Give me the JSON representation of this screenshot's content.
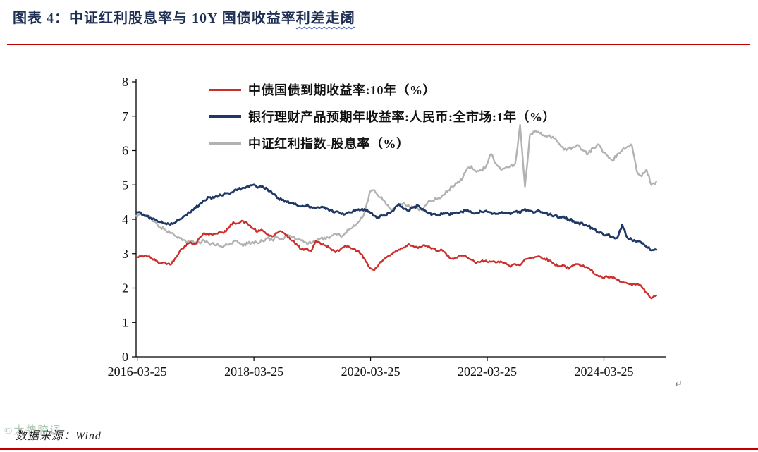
{
  "header": {
    "title_prefix": "图表 4：中证红利股息率与 10Y 国债收益率",
    "title_wavy": "利差走阔"
  },
  "footer": {
    "watermark": "©大牌腔调",
    "source": "数据来源：Wind"
  },
  "marks": {
    "return_mark": "↵"
  },
  "colors": {
    "accent_rule": "#c00000",
    "title_text": "#1e2f54"
  },
  "chart_data": {
    "type": "line",
    "title": "图表 4：中证红利股息率与 10Y 国债收益率利差走阔",
    "xlabel": "",
    "ylabel": "",
    "ylim": [
      0,
      8
    ],
    "y_ticks": [
      0,
      1,
      2,
      3,
      4,
      5,
      6,
      7,
      8
    ],
    "grid": false,
    "legend_position": "top-left-inside",
    "x_range": [
      2016.21,
      2025.3
    ],
    "x_start": 2016.21,
    "x_step": 0.0833333,
    "x_tick_values": [
      2016.23,
      2018.23,
      2020.23,
      2022.23,
      2024.23
    ],
    "x_tick_labels": [
      "2016-03-25",
      "2018-03-25",
      "2020-03-25",
      "2022-03-25",
      "2024-03-25"
    ],
    "source": "Wind",
    "series": [
      {
        "name": "中债国债到期收益率:10年（%）",
        "color": "#cb2f2b",
        "values": [
          2.88,
          2.92,
          2.95,
          2.88,
          2.8,
          2.72,
          2.74,
          2.68,
          2.86,
          3.08,
          3.22,
          3.32,
          3.28,
          3.45,
          3.6,
          3.55,
          3.58,
          3.62,
          3.6,
          3.74,
          3.92,
          3.88,
          3.95,
          3.86,
          3.74,
          3.64,
          3.68,
          3.56,
          3.5,
          3.6,
          3.64,
          3.54,
          3.38,
          3.28,
          3.12,
          3.14,
          3.08,
          3.38,
          3.28,
          3.24,
          3.16,
          3.04,
          3.12,
          3.24,
          3.18,
          3.14,
          3.02,
          2.86,
          2.6,
          2.52,
          2.7,
          2.84,
          2.94,
          3.04,
          3.12,
          3.18,
          3.28,
          3.22,
          3.16,
          3.24,
          3.2,
          3.16,
          3.08,
          3.1,
          2.94,
          2.86,
          2.88,
          2.94,
          2.9,
          2.82,
          2.72,
          2.78,
          2.8,
          2.76,
          2.74,
          2.78,
          2.74,
          2.62,
          2.7,
          2.66,
          2.84,
          2.88,
          2.9,
          2.92,
          2.86,
          2.8,
          2.7,
          2.64,
          2.66,
          2.56,
          2.66,
          2.7,
          2.66,
          2.58,
          2.46,
          2.36,
          2.3,
          2.32,
          2.3,
          2.24,
          2.16,
          2.14,
          2.08,
          2.12,
          2.04,
          1.86,
          1.7,
          1.78
        ]
      },
      {
        "name": "银行理财产品预期年收益率:人民币:全市场:1年（%）",
        "color": "#1f3864",
        "values": [
          4.22,
          4.18,
          4.1,
          4.04,
          3.98,
          3.92,
          3.88,
          3.84,
          3.9,
          4.0,
          4.1,
          4.2,
          4.32,
          4.42,
          4.55,
          4.64,
          4.62,
          4.68,
          4.72,
          4.76,
          4.8,
          4.88,
          4.92,
          4.96,
          5.0,
          4.92,
          4.96,
          4.88,
          4.76,
          4.62,
          4.56,
          4.5,
          4.46,
          4.42,
          4.38,
          4.4,
          4.36,
          4.32,
          4.35,
          4.3,
          4.28,
          4.22,
          4.18,
          4.15,
          4.2,
          4.24,
          4.26,
          4.3,
          4.22,
          4.1,
          4.05,
          4.12,
          4.18,
          4.26,
          4.44,
          4.3,
          4.25,
          4.35,
          4.4,
          4.3,
          4.2,
          4.15,
          4.12,
          4.15,
          4.18,
          4.15,
          4.2,
          4.22,
          4.25,
          4.2,
          4.18,
          4.22,
          4.25,
          4.2,
          4.15,
          4.18,
          4.2,
          4.15,
          4.22,
          4.18,
          4.3,
          4.25,
          4.2,
          4.24,
          4.18,
          4.14,
          4.1,
          4.05,
          4.08,
          4.0,
          3.95,
          3.9,
          3.85,
          3.8,
          3.72,
          3.62,
          3.58,
          3.55,
          3.5,
          3.46,
          3.85,
          3.48,
          3.4,
          3.35,
          3.3,
          3.2,
          3.1,
          3.12
        ]
      },
      {
        "name": "中证红利指数-股息率（%）",
        "color": "#b2b2b2",
        "values": [
          4.1,
          4.15,
          4.12,
          4.05,
          3.92,
          3.76,
          3.7,
          3.6,
          3.52,
          3.45,
          3.4,
          3.35,
          3.3,
          3.32,
          3.38,
          3.3,
          3.28,
          3.24,
          3.22,
          3.26,
          3.36,
          3.32,
          3.22,
          3.3,
          3.34,
          3.3,
          3.38,
          3.45,
          3.4,
          3.48,
          3.42,
          3.55,
          3.48,
          3.42,
          3.38,
          3.32,
          3.3,
          3.35,
          3.45,
          3.42,
          3.5,
          3.58,
          3.52,
          3.6,
          3.72,
          3.8,
          3.95,
          4.2,
          4.75,
          4.85,
          4.65,
          4.55,
          4.35,
          4.3,
          4.42,
          4.48,
          4.42,
          4.32,
          4.3,
          4.26,
          4.5,
          4.55,
          4.6,
          4.7,
          4.8,
          4.95,
          5.05,
          5.15,
          5.45,
          5.55,
          5.38,
          5.42,
          5.55,
          5.9,
          5.62,
          5.45,
          5.5,
          5.55,
          5.62,
          6.75,
          4.95,
          6.45,
          6.55,
          6.5,
          6.42,
          6.45,
          6.35,
          6.2,
          6.02,
          6.05,
          6.1,
          6.15,
          6.0,
          5.9,
          6.08,
          6.18,
          5.95,
          5.85,
          5.7,
          5.9,
          6.0,
          6.1,
          6.15,
          5.4,
          5.25,
          5.45,
          5.0,
          5.1
        ]
      }
    ]
  }
}
